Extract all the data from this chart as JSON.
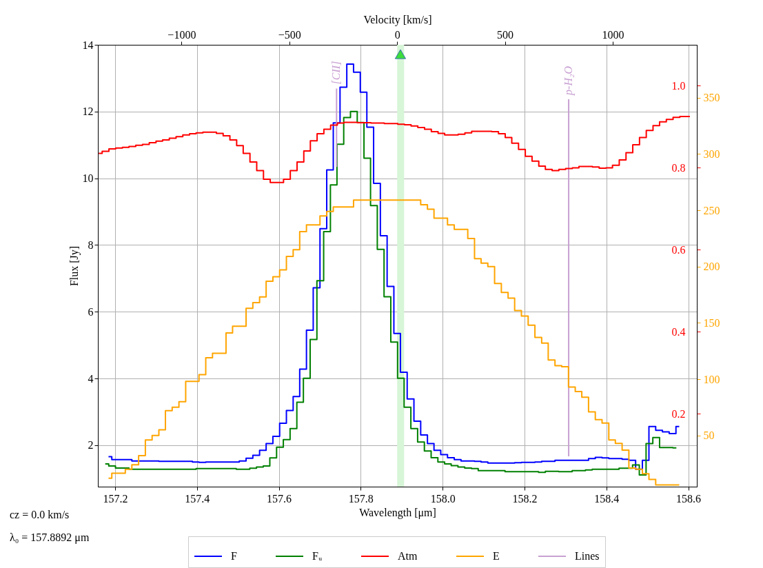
{
  "chart_data": {
    "type": "step",
    "xlabel": "Wavelength [μm]",
    "ylabel": "Flux [Jy]",
    "x2label": "Velocity [km/s]",
    "xlim": [
      157.158,
      158.621
    ],
    "xticks": [
      157.2,
      157.4,
      157.6,
      157.8,
      {
        "value": 158,
        "label": "158.0"
      },
      158.2,
      158.4,
      158.6
    ],
    "ylim": [
      0.76,
      14
    ],
    "yticks": [
      2,
      4,
      6,
      8,
      10,
      12,
      14
    ],
    "y2lim": [
      0.022,
      1.1
    ],
    "y2ticks": [
      0.2,
      0.4,
      0.6,
      0.8,
      {
        "value": 1,
        "label": "1.0"
      }
    ],
    "y3lim": [
      4.5,
      397
    ],
    "y3ticks": [
      50,
      100,
      150,
      200,
      250,
      300,
      350
    ],
    "x2lim": [
      -1388,
      1390
    ],
    "x2ticks": [
      -1000,
      -500,
      0,
      500,
      1000
    ],
    "grid": true,
    "legend": "bottom",
    "x": [
      157.184,
      157.2,
      157.217,
      157.233,
      157.249,
      157.266,
      157.282,
      157.299,
      157.315,
      157.331,
      157.348,
      157.364,
      157.381,
      157.397,
      157.413,
      157.43,
      157.446,
      157.463,
      157.479,
      157.495,
      157.512,
      157.528,
      157.545,
      157.561,
      157.577,
      157.594,
      157.61,
      157.627,
      157.643,
      157.659,
      157.676,
      157.692,
      157.709,
      157.725,
      157.741,
      157.758,
      157.774,
      157.791,
      157.807,
      157.823,
      157.84,
      157.856,
      157.873,
      157.889,
      157.905,
      157.922,
      157.938,
      157.955,
      157.971,
      157.987,
      158.004,
      158.02,
      158.037,
      158.053,
      158.07,
      158.086,
      158.102,
      158.119,
      158.135,
      158.152,
      158.168,
      158.184,
      158.201,
      158.217,
      158.234,
      158.25,
      158.266,
      158.283,
      158.299,
      158.316,
      158.332,
      158.348,
      158.365,
      158.381,
      158.398,
      158.414,
      158.43,
      158.447,
      158.463,
      158.48,
      158.496,
      158.512,
      158.529,
      158.545,
      158.562,
      158.578
    ],
    "series": [
      {
        "name": "F",
        "color": "#0000ff",
        "values": [
          1.66,
          1.57,
          1.57,
          1.57,
          1.53,
          1.53,
          1.53,
          1.53,
          1.52,
          1.52,
          1.52,
          1.52,
          1.52,
          1.5,
          1.49,
          1.5,
          1.5,
          1.5,
          1.5,
          1.5,
          1.53,
          1.61,
          1.7,
          1.85,
          2.05,
          2.27,
          2.66,
          3.04,
          3.46,
          4.28,
          5.45,
          6.72,
          8.49,
          10.25,
          11.66,
          12.73,
          13.42,
          13.18,
          12.58,
          11.53,
          9.85,
          8.28,
          6.76,
          5.35,
          4.19,
          3.39,
          2.72,
          2.31,
          2.05,
          1.85,
          1.72,
          1.63,
          1.57,
          1.53,
          1.53,
          1.52,
          1.5,
          1.47,
          1.47,
          1.47,
          1.47,
          1.48,
          1.49,
          1.49,
          1.5,
          1.52,
          1.52,
          1.55,
          1.55,
          1.55,
          1.55,
          1.55,
          1.6,
          1.64,
          1.62,
          1.6,
          1.6,
          1.58,
          1.55,
          1.28,
          1.55,
          2.56,
          2.45,
          2.4,
          2.35,
          2.56
        ]
      },
      {
        "name": "Fᵤ",
        "color": "#008000",
        "x": [
          157.176,
          157.193,
          157.209,
          157.226,
          157.242,
          157.258,
          157.275,
          157.291,
          157.308,
          157.324,
          157.34,
          157.357,
          157.373,
          157.39,
          157.406,
          157.422,
          157.439,
          157.455,
          157.472,
          157.488,
          157.504,
          157.521,
          157.537,
          157.554,
          157.57,
          157.586,
          157.603,
          157.619,
          157.636,
          157.652,
          157.668,
          157.685,
          157.701,
          157.718,
          157.734,
          157.75,
          157.767,
          157.783,
          157.8,
          157.816,
          157.832,
          157.849,
          157.865,
          157.882,
          157.898,
          157.914,
          157.931,
          157.947,
          157.964,
          157.98,
          157.997,
          158.013,
          158.029,
          158.046,
          158.062,
          158.079,
          158.095,
          158.111,
          158.128,
          158.144,
          158.161,
          158.177,
          158.193,
          158.21,
          158.226,
          158.243,
          158.259,
          158.275,
          158.292,
          158.308,
          158.325,
          158.341,
          158.357,
          158.374,
          158.39,
          158.407,
          158.423,
          158.439,
          158.456,
          158.472,
          158.489,
          158.505,
          158.522,
          158.538,
          158.554,
          158.571
        ],
        "values": [
          1.44,
          1.38,
          1.32,
          1.32,
          1.28,
          1.28,
          1.28,
          1.28,
          1.28,
          1.28,
          1.28,
          1.28,
          1.28,
          1.28,
          1.3,
          1.3,
          1.3,
          1.3,
          1.3,
          1.3,
          1.28,
          1.28,
          1.31,
          1.35,
          1.38,
          1.62,
          1.94,
          2.17,
          2.5,
          3.29,
          4.01,
          5.17,
          6.93,
          8.4,
          9.8,
          11.02,
          11.82,
          12.0,
          11.67,
          10.6,
          9.18,
          7.87,
          6.45,
          5.09,
          4.01,
          3.14,
          2.5,
          2.1,
          1.83,
          1.63,
          1.5,
          1.44,
          1.39,
          1.35,
          1.32,
          1.3,
          1.24,
          1.24,
          1.24,
          1.24,
          1.21,
          1.21,
          1.21,
          1.21,
          1.21,
          1.19,
          1.22,
          1.22,
          1.21,
          1.21,
          1.24,
          1.24,
          1.26,
          1.28,
          1.28,
          1.28,
          1.28,
          1.31,
          1.31,
          1.41,
          1.11,
          2.05,
          2.23,
          1.93,
          1.93,
          1.92
        ]
      },
      {
        "name": "Atm",
        "color": "#ff0000",
        "axis": "y2",
        "x": [
          157.16,
          157.177,
          157.193,
          157.21,
          157.226,
          157.242,
          157.259,
          157.275,
          157.292,
          157.308,
          157.324,
          157.341,
          157.357,
          157.374,
          157.39,
          157.406,
          157.423,
          157.439,
          157.456,
          157.472,
          157.489,
          157.505,
          157.521,
          157.538,
          157.554,
          157.571,
          157.587,
          157.603,
          157.62,
          157.636,
          157.653,
          157.669,
          157.685,
          157.702,
          157.718,
          157.735,
          157.751,
          157.767,
          157.784,
          157.8,
          157.817,
          157.833,
          157.849,
          157.866,
          157.882,
          157.899,
          157.915,
          157.931,
          157.948,
          157.964,
          157.981,
          157.997,
          158.013,
          158.03,
          158.046,
          158.063,
          158.079,
          158.095,
          158.112,
          158.128,
          158.145,
          158.161,
          158.177,
          158.194,
          158.21,
          158.227,
          158.243,
          158.259,
          158.276,
          158.292,
          158.309,
          158.325,
          158.341,
          158.358,
          158.374,
          158.391,
          158.407,
          158.423,
          158.44,
          158.456,
          158.473,
          158.489,
          158.506,
          158.522,
          158.538,
          158.555,
          158.571,
          158.588,
          158.604
        ],
        "values": [
          0.835,
          0.84,
          0.846,
          0.848,
          0.85,
          0.852,
          0.855,
          0.857,
          0.861,
          0.865,
          0.868,
          0.872,
          0.876,
          0.88,
          0.883,
          0.885,
          0.887,
          0.887,
          0.884,
          0.878,
          0.868,
          0.854,
          0.835,
          0.814,
          0.793,
          0.772,
          0.764,
          0.764,
          0.772,
          0.793,
          0.814,
          0.841,
          0.866,
          0.883,
          0.894,
          0.904,
          0.909,
          0.911,
          0.911,
          0.91,
          0.91,
          0.909,
          0.909,
          0.908,
          0.908,
          0.906,
          0.905,
          0.902,
          0.898,
          0.894,
          0.888,
          0.884,
          0.88,
          0.88,
          0.882,
          0.885,
          0.889,
          0.889,
          0.889,
          0.888,
          0.883,
          0.874,
          0.86,
          0.845,
          0.828,
          0.816,
          0.804,
          0.796,
          0.793,
          0.796,
          0.798,
          0.8,
          0.803,
          0.803,
          0.802,
          0.799,
          0.8,
          0.806,
          0.819,
          0.837,
          0.856,
          0.874,
          0.891,
          0.903,
          0.912,
          0.918,
          0.923,
          0.925,
          0.925
        ]
      },
      {
        "name": "E",
        "color": "#ffa500",
        "axis": "y3",
        "values": [
          12,
          16.5,
          16.5,
          20,
          24,
          32,
          46,
          50,
          55,
          72,
          75,
          80,
          98,
          98,
          104,
          119,
          123,
          123,
          141,
          147,
          147,
          163,
          168,
          173,
          187,
          191,
          197,
          209,
          215,
          231,
          237,
          237,
          245,
          249,
          253,
          253,
          253,
          259,
          259,
          259,
          259,
          259,
          259,
          259,
          259,
          259,
          259,
          255,
          251,
          243,
          243,
          237,
          233,
          233,
          225,
          207,
          203,
          200,
          185,
          177,
          172,
          161,
          156,
          148,
          137,
          132,
          117,
          112,
          111,
          93,
          89,
          84,
          71,
          64,
          61,
          46,
          43,
          37,
          21,
          20,
          16,
          11,
          6,
          6,
          6,
          6
        ]
      },
      {
        "name": "Lines",
        "color": "#c8a0d2",
        "type": "line",
        "x": [
          157.741,
          157.741,
          null,
          158.308,
          158.308
        ],
        "values": [
          10.34,
          12.69,
          null,
          1.67,
          12.37
        ]
      },
      {
        "type": "scatter",
        "marker": "triangle",
        "color": "#3cdc3c",
        "x": [
          157.897
        ],
        "values": [
          13.72
        ]
      }
    ],
    "bands": [
      {
        "axis": "x",
        "from": 157.889,
        "to": 157.906,
        "color": "#d7f5d7"
      }
    ],
    "annotations": [
      {
        "text": "[CII]",
        "x": 157.741,
        "y": 12.69
      },
      {
        "text": "p-H₂O",
        "x": 158.308,
        "y": 12.37
      },
      "cz = 0.0 km/s",
      "λ₀ = 157.8892 μm"
    ]
  }
}
